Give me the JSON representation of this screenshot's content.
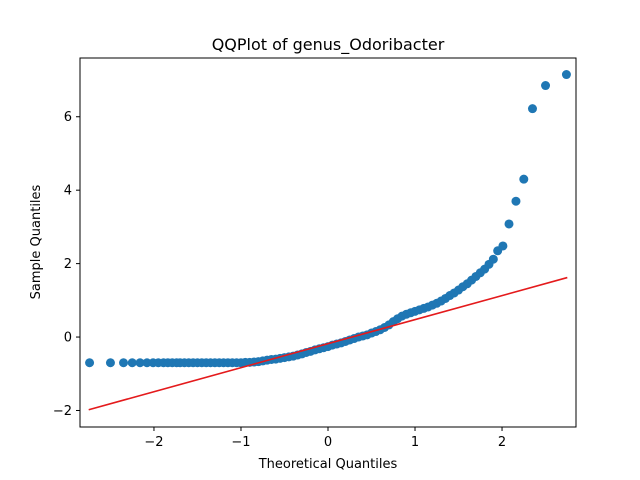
{
  "chart_data": {
    "type": "scatter",
    "title": "QQPlot of genus_Odoribacter",
    "xlabel": "Theoretical Quantiles",
    "ylabel": "Sample Quantiles",
    "xlim": [
      -2.85,
      2.85
    ],
    "ylim": [
      -2.45,
      7.6
    ],
    "xticks": [
      -2,
      -1,
      0,
      1,
      2
    ],
    "yticks": [
      -2,
      0,
      2,
      4,
      6
    ],
    "grid": false,
    "marker_color": "#1f77b4",
    "line_color": "#e41a1c",
    "reference_line": {
      "x": [
        -2.75,
        2.75
      ],
      "y": [
        -1.98,
        1.62
      ]
    },
    "series": [
      {
        "x": [
          -2.74,
          -2.5,
          -2.35,
          -2.25,
          -2.16,
          -2.08,
          -2.01,
          -1.95,
          -1.89,
          -1.84,
          -1.79,
          -1.74,
          -1.7,
          -1.65,
          -1.6,
          -1.55,
          -1.5,
          -1.45,
          -1.4,
          -1.35,
          -1.3,
          -1.25,
          -1.2,
          -1.15,
          -1.1,
          -1.05,
          -1.0,
          -0.95,
          -0.9,
          -0.85,
          -0.8,
          -0.75,
          -0.7,
          -0.65,
          -0.6,
          -0.55,
          -0.5,
          -0.45,
          -0.4,
          -0.35,
          -0.3,
          -0.25,
          -0.2,
          -0.15,
          -0.1,
          -0.05,
          0.0,
          0.05,
          0.1,
          0.15,
          0.2,
          0.25,
          0.3,
          0.35,
          0.4,
          0.45,
          0.5,
          0.55,
          0.6,
          0.65,
          0.7,
          0.75,
          0.8,
          0.85,
          0.9,
          0.95,
          1.0,
          1.05,
          1.1,
          1.15,
          1.2,
          1.25,
          1.3,
          1.35,
          1.4,
          1.45,
          1.5,
          1.55,
          1.6,
          1.65,
          1.7,
          1.75,
          1.8,
          1.85,
          1.9,
          1.95,
          2.01,
          2.08,
          2.16,
          2.25,
          2.35,
          2.5,
          2.74
        ],
        "y": [
          -0.7,
          -0.7,
          -0.7,
          -0.7,
          -0.7,
          -0.7,
          -0.7,
          -0.7,
          -0.7,
          -0.7,
          -0.7,
          -0.7,
          -0.7,
          -0.7,
          -0.7,
          -0.7,
          -0.7,
          -0.7,
          -0.7,
          -0.7,
          -0.7,
          -0.7,
          -0.7,
          -0.7,
          -0.7,
          -0.7,
          -0.7,
          -0.69,
          -0.69,
          -0.68,
          -0.67,
          -0.65,
          -0.63,
          -0.61,
          -0.6,
          -0.58,
          -0.56,
          -0.54,
          -0.52,
          -0.49,
          -0.46,
          -0.42,
          -0.39,
          -0.35,
          -0.32,
          -0.29,
          -0.26,
          -0.22,
          -0.19,
          -0.16,
          -0.12,
          -0.08,
          -0.04,
          0.0,
          0.03,
          0.06,
          0.11,
          0.15,
          0.2,
          0.26,
          0.33,
          0.42,
          0.5,
          0.57,
          0.62,
          0.66,
          0.7,
          0.74,
          0.78,
          0.82,
          0.87,
          0.92,
          0.98,
          1.05,
          1.13,
          1.2,
          1.28,
          1.37,
          1.45,
          1.55,
          1.65,
          1.75,
          1.85,
          1.98,
          2.12,
          2.35,
          2.48,
          3.08,
          3.7,
          4.3,
          6.22,
          6.85,
          7.15
        ]
      }
    ]
  }
}
